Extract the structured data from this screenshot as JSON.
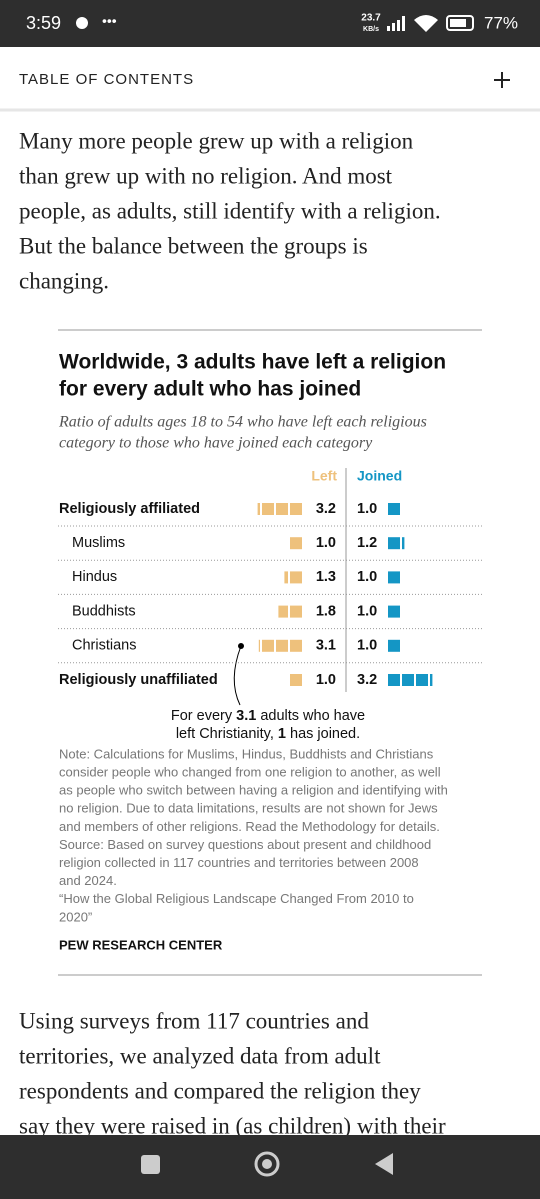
{
  "status_bar": {
    "time": "3:59",
    "speed": "23.7",
    "speed_unit": "KB/s",
    "battery": "77%"
  },
  "header": {
    "title": "TABLE OF CONTENTS"
  },
  "intro": [
    "Many more people grew up with a religion",
    "than grew up with no religion. And most",
    "people, as adults, still identify with a religion.",
    "But the balance between the groups is",
    "changing."
  ],
  "chart_data": {
    "type": "bar",
    "title": [
      "Worldwide, 3 adults have left a religion",
      "for every adult who has joined"
    ],
    "subtitle": [
      "Ratio of adults ages 18 to 54 who have left each religious",
      "category to those who have joined each category"
    ],
    "categories": [
      "Religiously affiliated",
      "Muslims",
      "Hindus",
      "Buddhists",
      "Christians",
      "Religiously unaffiliated"
    ],
    "series": [
      {
        "name": "Left",
        "color": "#eec17c",
        "values": [
          3.2,
          1,
          1.3,
          1.8,
          3.1,
          1
        ],
        "value_labels": [
          "3.2",
          "1.0",
          "1.3",
          "1.8",
          "3.1",
          "1.0"
        ]
      },
      {
        "name": "Joined",
        "color": "#1496c5",
        "values": [
          1,
          1.2,
          1,
          1,
          1,
          3.2
        ],
        "value_labels": [
          "1.0",
          "1.2",
          "1.0",
          "1.0",
          "1.0",
          "3.2"
        ]
      }
    ],
    "annotation": [
      [
        "For every ",
        "3.1",
        " adults who have"
      ],
      [
        "left Christianity, ",
        "1",
        " has joined."
      ]
    ],
    "note": [
      "Note: Calculations for Muslims, Hindus, Buddhists and Christians",
      "consider people who changed from one religion to another, as well",
      "as people who switch between having a religion and identifying with",
      "no religion. Due to data limitations, results are not shown for Jews",
      "and members of other religions. Read the Methodology for details.",
      "Source: Based on survey questions about present and childhood",
      "religion collected in 117 countries and territories between 2008",
      "and 2024.",
      "“How the Global Religious Landscape Changed From 2010 to",
      "2020”"
    ],
    "credit": "PEW RESEARCH CENTER"
  },
  "body": [
    "Using surveys from 117 countries and",
    "territories, we analyzed data from adult",
    "respondents and compared the religion they",
    "say they were raised in (as children) with their"
  ]
}
